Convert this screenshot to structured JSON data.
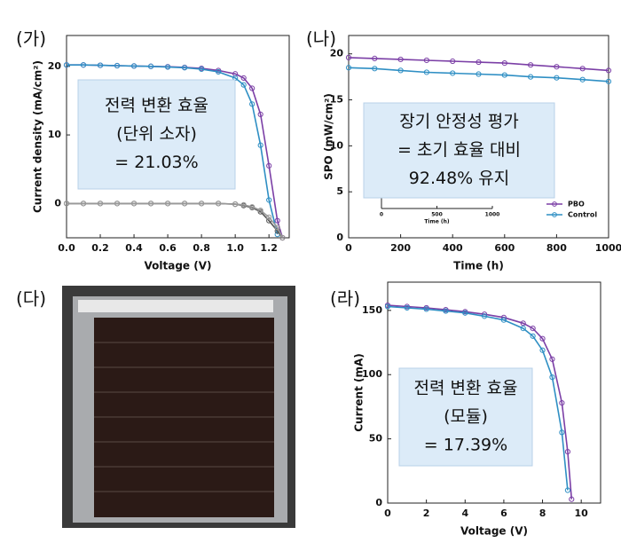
{
  "chart_data": [
    {
      "type": "line",
      "title": "(가)",
      "xlabel": "Voltage (V)",
      "ylabel": "Current density (mA/cm²)",
      "xlim": [
        0,
        1.32
      ],
      "xticks": [
        {
          "value": 0,
          "label": "0.0"
        },
        0.2,
        0.4,
        0.6,
        0.8,
        {
          "value": 1,
          "label": "1.0"
        },
        1.2
      ],
      "ylim": [
        -5,
        24.5
      ],
      "yticks": [
        0,
        10,
        20
      ],
      "x": [
        0,
        0.1,
        0.2,
        0.3,
        0.4,
        0.5,
        0.6,
        0.7,
        0.8,
        0.9,
        1.0,
        1.05,
        1.1,
        1.15,
        1.2,
        1.25,
        1.28
      ],
      "series": [
        {
          "color": "#7b3fa6",
          "values": [
            20.2,
            20.2,
            20.15,
            20.1,
            20.05,
            20.0,
            19.95,
            19.85,
            19.7,
            19.4,
            18.9,
            18.3,
            16.8,
            13,
            5.5,
            -2.5,
            -5
          ]
        },
        {
          "color": "#2f8fc4",
          "values": [
            20.2,
            20.2,
            20.15,
            20.1,
            20.05,
            20.0,
            19.9,
            19.8,
            19.6,
            19.2,
            18.3,
            17.3,
            14.5,
            8.5,
            0.5,
            -4.5,
            null
          ]
        },
        {
          "color": "#555555",
          "values": [
            0,
            0,
            0,
            0,
            0,
            0,
            0,
            0,
            0,
            0,
            -0.1,
            -0.3,
            -0.6,
            -1.2,
            -2.5,
            -4,
            -5
          ]
        },
        {
          "color": "#999999",
          "values": [
            0,
            0,
            0,
            0,
            0,
            0,
            0,
            0,
            0,
            0,
            -0.1,
            -0.2,
            -0.5,
            -1,
            -2,
            -3.5,
            -5
          ]
        }
      ],
      "annotation": [
        "전력 변환 효율",
        "(단위 소자)",
        "= 21.03%"
      ]
    },
    {
      "type": "line",
      "title": "(나)",
      "xlabel": "Time (h)",
      "ylabel": "SPO (mW/cm²)",
      "xlim": [
        0,
        1000
      ],
      "xticks": [
        0,
        200,
        400,
        600,
        800,
        1000
      ],
      "ylim": [
        0,
        22
      ],
      "yticks": [
        0,
        5,
        10,
        15,
        20
      ],
      "x": [
        0,
        100,
        200,
        300,
        400,
        500,
        600,
        700,
        800,
        900,
        1000
      ],
      "series": [
        {
          "name": "PBO",
          "color": "#7b3fa6",
          "values": [
            19.6,
            19.5,
            19.4,
            19.3,
            19.2,
            19.1,
            19.0,
            18.8,
            18.6,
            18.4,
            18.2
          ]
        },
        {
          "name": "Control",
          "color": "#2f8fc4",
          "values": [
            18.5,
            18.4,
            18.2,
            18.0,
            17.9,
            17.8,
            17.7,
            17.5,
            17.4,
            17.2,
            17.0
          ]
        }
      ],
      "legend": "lower right",
      "inset": {
        "xlim": [
          0,
          1000
        ],
        "xticks": [
          0,
          500,
          1000
        ],
        "xlabel": "Time (h)"
      },
      "annotation": [
        "장기 안정성 평가",
        "= 초기 효율 대비",
        "92.48% 유지"
      ]
    },
    {
      "type": "line",
      "title": "(라)",
      "xlabel": "Voltage (V)",
      "ylabel": "Current (mA)",
      "xlim": [
        0,
        11
      ],
      "xticks": [
        0,
        2,
        4,
        6,
        8,
        10
      ],
      "ylim": [
        0,
        172
      ],
      "yticks": [
        0,
        50,
        100,
        150
      ],
      "x": [
        0,
        1,
        2,
        3,
        4,
        5,
        6,
        7,
        7.5,
        8,
        8.5,
        9,
        9.3,
        9.5
      ],
      "series": [
        {
          "color": "#7b3fa6",
          "values": [
            154,
            153,
            152,
            150.5,
            149,
            147,
            144.5,
            140,
            136,
            128,
            112,
            78,
            40,
            3
          ]
        },
        {
          "color": "#2f8fc4",
          "values": [
            153,
            152,
            151,
            149.5,
            148,
            145.5,
            142.5,
            136,
            130,
            119,
            98,
            55,
            10,
            null
          ]
        }
      ],
      "annotation": [
        "전력 변환 효율",
        "(모듈)",
        "= 17.39%"
      ]
    }
  ],
  "photo": {
    "label": "(다)"
  }
}
